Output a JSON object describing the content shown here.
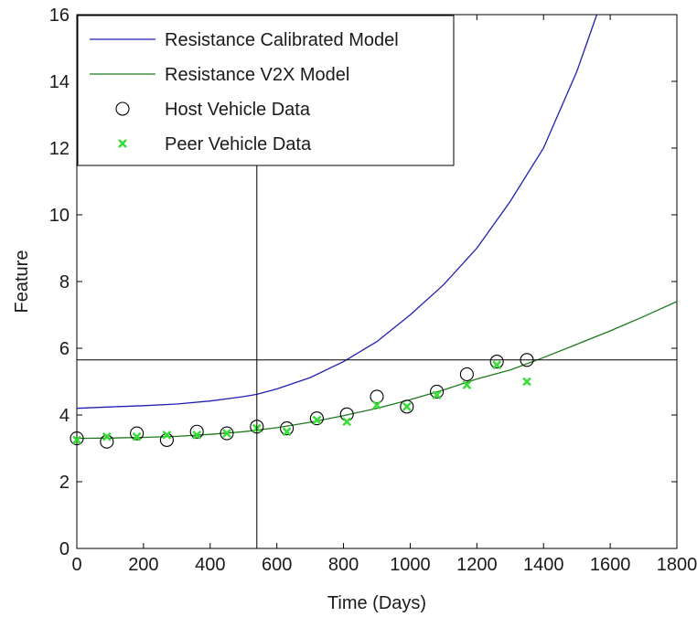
{
  "chart_data": {
    "type": "line",
    "xlabel": "Time (Days)",
    "ylabel": "Feature",
    "xlim": [
      0,
      1800
    ],
    "ylim": [
      0,
      16
    ],
    "xticks": [
      0,
      200,
      400,
      600,
      800,
      1000,
      1200,
      1400,
      1600,
      1800
    ],
    "yticks": [
      0,
      2,
      4,
      6,
      8,
      10,
      12,
      14,
      16
    ],
    "xtick_labels": [
      "0",
      "200",
      "400",
      "600",
      "800",
      "1000",
      "1200",
      "1400",
      "1600",
      "1800"
    ],
    "ytick_labels": [
      "0",
      "2",
      "4",
      "6",
      "8",
      "10",
      "12",
      "14",
      "16"
    ],
    "grid": false,
    "legend_position": "top-left",
    "series": [
      {
        "name": "Resistance Calibrated Model",
        "kind": "line",
        "color": "#1f1fb4",
        "x": [
          0,
          100,
          200,
          300,
          400,
          500,
          540,
          600,
          700,
          800,
          900,
          1000,
          1100,
          1200,
          1300,
          1400,
          1500,
          1560
        ],
        "y": [
          4.2,
          4.24,
          4.28,
          4.33,
          4.42,
          4.55,
          4.62,
          4.78,
          5.12,
          5.6,
          6.2,
          7.0,
          7.9,
          9.0,
          10.4,
          12.0,
          14.3,
          16.0
        ]
      },
      {
        "name": "Resistance V2X Model",
        "kind": "line",
        "color": "#1e7a1e",
        "x": [
          0,
          100,
          200,
          300,
          400,
          500,
          600,
          700,
          800,
          900,
          1000,
          1100,
          1200,
          1300,
          1400,
          1500,
          1600,
          1700,
          1800
        ],
        "y": [
          3.3,
          3.31,
          3.33,
          3.36,
          3.42,
          3.5,
          3.62,
          3.78,
          3.98,
          4.2,
          4.46,
          4.75,
          5.08,
          5.35,
          5.72,
          6.12,
          6.52,
          6.95,
          7.4
        ]
      },
      {
        "name": "Host Vehicle Data",
        "kind": "marker-circle",
        "color": "#000000",
        "x": [
          0,
          90,
          180,
          270,
          360,
          450,
          540,
          630,
          720,
          810,
          900,
          990,
          1080,
          1170,
          1260,
          1350
        ],
        "y": [
          3.3,
          3.2,
          3.45,
          3.25,
          3.5,
          3.45,
          3.65,
          3.6,
          3.9,
          4.02,
          4.55,
          4.25,
          4.7,
          5.22,
          5.6,
          5.65
        ]
      },
      {
        "name": "Peer Vehicle Data",
        "kind": "marker-x",
        "color": "#33dd33",
        "x": [
          0,
          90,
          180,
          270,
          360,
          450,
          540,
          630,
          720,
          810,
          900,
          990,
          1080,
          1170,
          1260,
          1350
        ],
        "y": [
          3.25,
          3.35,
          3.35,
          3.4,
          3.4,
          3.45,
          3.6,
          3.5,
          3.85,
          3.8,
          4.3,
          4.25,
          4.6,
          4.9,
          5.5,
          5.0
        ]
      }
    ],
    "reference_lines": {
      "vertical_x": 540,
      "horizontal_y": 5.65
    }
  }
}
